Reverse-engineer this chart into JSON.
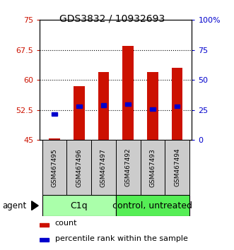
{
  "title": "GDS3832 / 10932693",
  "categories": [
    "GSM467495",
    "GSM467496",
    "GSM467497",
    "GSM467492",
    "GSM467493",
    "GSM467494"
  ],
  "bar_bottoms": [
    45,
    45,
    45,
    45,
    45,
    45
  ],
  "bar_tops": [
    45.4,
    58.5,
    62.0,
    68.5,
    62.0,
    63.0
  ],
  "blue_values": [
    51.5,
    53.5,
    53.7,
    54.0,
    52.8,
    53.5
  ],
  "ylim_left": [
    45,
    75
  ],
  "ylim_right": [
    0,
    100
  ],
  "yticks_left": [
    45,
    52.5,
    60,
    67.5,
    75
  ],
  "yticks_right": [
    0,
    25,
    50,
    75,
    100
  ],
  "ytick_labels_left": [
    "45",
    "52.5",
    "60",
    "67.5",
    "75"
  ],
  "ytick_labels_right": [
    "0",
    "25",
    "50",
    "75",
    "100%"
  ],
  "bar_color": "#cc1100",
  "blue_color": "#0000cc",
  "group1_label": "C1q",
  "group2_label": "control, untreated",
  "group1_color": "#aaffaa",
  "group2_color": "#55ee55",
  "agent_label": "agent",
  "legend_count": "count",
  "legend_percentile": "percentile rank within the sample",
  "bar_width": 0.45,
  "plot_bg": "#ffffff"
}
